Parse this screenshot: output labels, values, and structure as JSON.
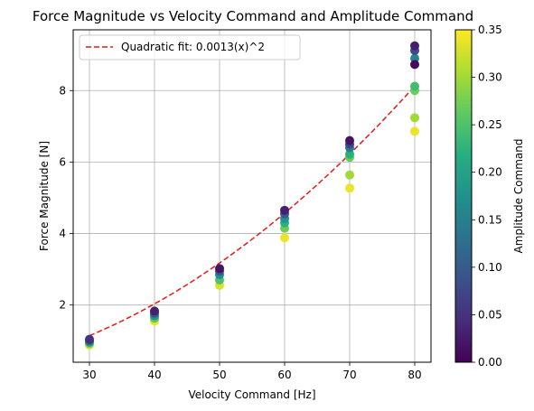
{
  "chart_data": {
    "type": "scatter",
    "title": "Force Magnitude vs Velocity Command and Amplitude Command",
    "xlabel": "Velocity Command [Hz]",
    "ylabel": "Force Magnitude [N]",
    "xlim": [
      27.5,
      82.5
    ],
    "ylim": [
      0.4,
      9.7
    ],
    "xticks": [
      30,
      40,
      50,
      60,
      70,
      80
    ],
    "yticks": [
      2,
      4,
      6,
      8
    ],
    "grid": true,
    "legend": {
      "position": "top-left",
      "entries": [
        "Quadratic fit: 0.0013(x)^2"
      ]
    },
    "fit": {
      "label": "Quadratic fit: 0.0013(x)^2",
      "coefficient": 0.00127,
      "x_range": [
        30,
        80
      ],
      "color": "#e41a1c",
      "style": "dashed"
    },
    "colorbar": {
      "label": "Amplitude Command",
      "min": 0.0,
      "max": 0.35,
      "ticks": [
        "0.00",
        "0.05",
        "0.10",
        "0.15",
        "0.20",
        "0.25",
        "0.30",
        "0.35"
      ],
      "colormap": "viridis"
    },
    "points": [
      {
        "x": 30,
        "y": 0.88,
        "c": 0.34
      },
      {
        "x": 30,
        "y": 0.92,
        "c": 0.28
      },
      {
        "x": 30,
        "y": 0.96,
        "c": 0.2
      },
      {
        "x": 30,
        "y": 1.0,
        "c": 0.12
      },
      {
        "x": 30,
        "y": 1.04,
        "c": 0.05
      },
      {
        "x": 40,
        "y": 1.55,
        "c": 0.34
      },
      {
        "x": 40,
        "y": 1.63,
        "c": 0.26
      },
      {
        "x": 40,
        "y": 1.7,
        "c": 0.18
      },
      {
        "x": 40,
        "y": 1.77,
        "c": 0.1
      },
      {
        "x": 40,
        "y": 1.83,
        "c": 0.03
      },
      {
        "x": 50,
        "y": 2.55,
        "c": 0.33
      },
      {
        "x": 50,
        "y": 2.7,
        "c": 0.25
      },
      {
        "x": 50,
        "y": 2.85,
        "c": 0.17
      },
      {
        "x": 50,
        "y": 2.95,
        "c": 0.09
      },
      {
        "x": 50,
        "y": 3.02,
        "c": 0.02
      },
      {
        "x": 60,
        "y": 3.88,
        "c": 0.34
      },
      {
        "x": 60,
        "y": 4.15,
        "c": 0.27
      },
      {
        "x": 60,
        "y": 4.3,
        "c": 0.22
      },
      {
        "x": 60,
        "y": 4.42,
        "c": 0.18
      },
      {
        "x": 60,
        "y": 4.55,
        "c": 0.1
      },
      {
        "x": 60,
        "y": 4.65,
        "c": 0.03
      },
      {
        "x": 70,
        "y": 5.27,
        "c": 0.34
      },
      {
        "x": 70,
        "y": 5.64,
        "c": 0.3
      },
      {
        "x": 70,
        "y": 6.13,
        "c": 0.27
      },
      {
        "x": 70,
        "y": 6.22,
        "c": 0.22
      },
      {
        "x": 70,
        "y": 6.4,
        "c": 0.15
      },
      {
        "x": 70,
        "y": 6.5,
        "c": 0.07
      },
      {
        "x": 70,
        "y": 6.6,
        "c": 0.02
      },
      {
        "x": 80,
        "y": 6.86,
        "c": 0.34
      },
      {
        "x": 80,
        "y": 7.24,
        "c": 0.3
      },
      {
        "x": 80,
        "y": 8.0,
        "c": 0.27
      },
      {
        "x": 80,
        "y": 8.12,
        "c": 0.24
      },
      {
        "x": 80,
        "y": 8.9,
        "c": 0.16
      },
      {
        "x": 80,
        "y": 9.12,
        "c": 0.08
      },
      {
        "x": 80,
        "y": 9.25,
        "c": 0.03
      },
      {
        "x": 80,
        "y": 8.73,
        "c": 0.01
      }
    ]
  }
}
